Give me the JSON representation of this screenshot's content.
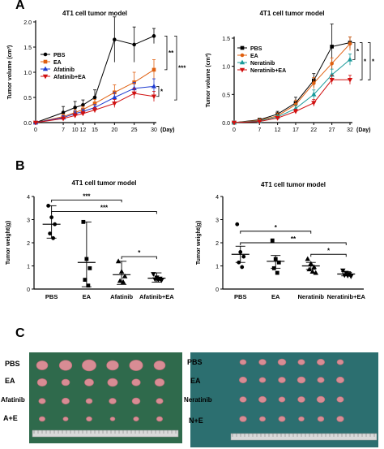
{
  "panels": [
    "A",
    "B",
    "C"
  ],
  "chart_data": [
    {
      "id": "afatinib-volume",
      "type": "line",
      "title": "4T1 cell tumor model",
      "xlabel": "(Day)",
      "ylabel": "Tumor volume (cm³)",
      "x": [
        0,
        7,
        10,
        12,
        15,
        20,
        25,
        30
      ],
      "xlim": [
        0,
        30
      ],
      "ylim": [
        0,
        2.0
      ],
      "yticks": [
        0.0,
        0.5,
        1.0,
        1.5,
        2.0
      ],
      "legend_position": "top-left",
      "series": [
        {
          "name": "PBS",
          "color": "#000000",
          "marker": "circle",
          "values": [
            0,
            0.2,
            0.3,
            0.35,
            0.5,
            1.65,
            1.55,
            1.72
          ],
          "err": [
            0,
            0.12,
            0.12,
            0.1,
            0.15,
            0.45,
            0.35,
            0.15
          ]
        },
        {
          "name": "EA",
          "color": "#e06010",
          "marker": "square",
          "values": [
            0,
            0.12,
            0.2,
            0.26,
            0.38,
            0.6,
            0.8,
            1.05
          ],
          "err": [
            0,
            0.05,
            0.06,
            0.06,
            0.08,
            0.15,
            0.2,
            0.2
          ]
        },
        {
          "name": "Afatinib",
          "color": "#1f3cd0",
          "marker": "triangle",
          "values": [
            0,
            0.1,
            0.18,
            0.22,
            0.3,
            0.5,
            0.68,
            0.72
          ],
          "err": [
            0,
            0.04,
            0.05,
            0.05,
            0.06,
            0.1,
            0.12,
            0.15
          ]
        },
        {
          "name": "Afatinib+EA",
          "color": "#d01010",
          "marker": "triangle-down",
          "values": [
            0,
            0.08,
            0.14,
            0.18,
            0.25,
            0.38,
            0.58,
            0.52
          ],
          "err": [
            0,
            0.03,
            0.04,
            0.04,
            0.05,
            0.08,
            0.1,
            0.1
          ]
        }
      ],
      "significance": [
        "*",
        "**",
        "***"
      ]
    },
    {
      "id": "neratinib-volume",
      "type": "line",
      "title": "4T1 cell tumor model",
      "xlabel": "(Day)",
      "ylabel": "Tumor volume (cm³)",
      "x": [
        0,
        7,
        12,
        17,
        22,
        27,
        32
      ],
      "xlim": [
        0,
        32
      ],
      "ylim": [
        0,
        1.5
      ],
      "yticks": [
        0.0,
        0.5,
        1.0,
        1.5
      ],
      "legend_position": "top-left",
      "series": [
        {
          "name": "PBS",
          "color": "#000000",
          "marker": "square",
          "values": [
            0,
            0.05,
            0.15,
            0.35,
            0.75,
            1.35,
            1.42
          ],
          "err": [
            0,
            0.03,
            0.05,
            0.1,
            0.12,
            0.4,
            0.1
          ]
        },
        {
          "name": "EA",
          "color": "#e06010",
          "marker": "circle",
          "values": [
            0,
            0.04,
            0.12,
            0.32,
            0.7,
            1.05,
            1.4
          ],
          "err": [
            0,
            0.03,
            0.05,
            0.08,
            0.1,
            0.1,
            0.12
          ]
        },
        {
          "name": "Neratinib",
          "color": "#1a9a9a",
          "marker": "triangle",
          "values": [
            0,
            0.03,
            0.1,
            0.25,
            0.5,
            0.85,
            1.12
          ],
          "err": [
            0,
            0.02,
            0.04,
            0.06,
            0.08,
            0.1,
            0.1
          ]
        },
        {
          "name": "Neratinib+EA",
          "color": "#d01010",
          "marker": "triangle-down",
          "values": [
            0,
            0.02,
            0.08,
            0.2,
            0.35,
            0.76,
            0.76
          ],
          "err": [
            0,
            0.02,
            0.03,
            0.04,
            0.06,
            0.08,
            0.08
          ]
        }
      ],
      "significance": [
        "*",
        "*",
        "*"
      ]
    },
    {
      "id": "afatinib-weight",
      "type": "scatter",
      "title": "4T1 cell tumor model",
      "ylabel": "Tumor weight(g)",
      "categories": [
        "PBS",
        "EA",
        "Afatinib",
        "Afatinib+EA"
      ],
      "ylim": [
        0,
        4
      ],
      "yticks": [
        0,
        1,
        2,
        3,
        4
      ],
      "groups": [
        {
          "name": "PBS",
          "marker": "circle",
          "mean": 2.8,
          "sd_low": 2.2,
          "sd_high": 3.6,
          "points": [
            3.6,
            3.1,
            2.8,
            2.4,
            2.2
          ]
        },
        {
          "name": "EA",
          "marker": "square",
          "mean": 1.15,
          "sd_low": 0.1,
          "sd_high": 2.9,
          "points": [
            2.9,
            1.3,
            0.9,
            0.4,
            0.15
          ]
        },
        {
          "name": "Afatinib",
          "marker": "triangle",
          "mean": 0.62,
          "sd_low": 0.2,
          "sd_high": 1.2,
          "points": [
            1.2,
            0.75,
            0.55,
            0.35,
            0.3
          ]
        },
        {
          "name": "Afatinib+EA",
          "marker": "triangle-down",
          "mean": 0.47,
          "sd_low": 0.3,
          "sd_high": 0.7,
          "points": [
            0.65,
            0.5,
            0.45,
            0.42,
            0.4,
            0.38
          ]
        }
      ],
      "brackets": [
        {
          "from": 0,
          "to": 2,
          "y": 3.85,
          "label": "***"
        },
        {
          "from": 0,
          "to": 3,
          "y": 3.35,
          "label": "***"
        },
        {
          "from": 2,
          "to": 3,
          "y": 1.4,
          "label": "*"
        }
      ]
    },
    {
      "id": "neratinib-weight",
      "type": "scatter",
      "title": "4T1 cell tumor model",
      "ylabel": "Tumor weight(g)",
      "categories": [
        "PBS",
        "EA",
        "Neratinib",
        "Neratinib+EA"
      ],
      "ylim": [
        0,
        4
      ],
      "yticks": [
        0,
        1,
        2,
        3,
        4
      ],
      "groups": [
        {
          "name": "PBS",
          "marker": "circle",
          "mean": 1.5,
          "sd_low": 1.15,
          "sd_high": 1.85,
          "points": [
            2.8,
            1.6,
            1.4,
            1.15,
            0.95
          ]
        },
        {
          "name": "EA",
          "marker": "square",
          "mean": 1.2,
          "sd_low": 0.9,
          "sd_high": 1.45,
          "points": [
            2.1,
            1.3,
            1.15,
            0.9,
            0.7
          ]
        },
        {
          "name": "Neratinib",
          "marker": "triangle",
          "mean": 1.0,
          "sd_low": 0.85,
          "sd_high": 1.15,
          "points": [
            1.3,
            1.1,
            0.95,
            0.85,
            0.75,
            0.7
          ]
        },
        {
          "name": "Neratinib+EA",
          "marker": "triangle-down",
          "mean": 0.65,
          "sd_low": 0.57,
          "sd_high": 0.75,
          "points": [
            0.8,
            0.7,
            0.65,
            0.6,
            0.58,
            0.55
          ]
        }
      ],
      "brackets": [
        {
          "from": 0,
          "to": 2,
          "y": 2.5,
          "label": "*"
        },
        {
          "from": 0,
          "to": 3,
          "y": 2.0,
          "label": "**"
        },
        {
          "from": 2,
          "to": 3,
          "y": 1.5,
          "label": "*"
        }
      ]
    }
  ],
  "photos": [
    {
      "id": "afatinib-photo",
      "rows": [
        "PBS",
        "EA",
        "Afatinib",
        "A+E"
      ]
    },
    {
      "id": "neratinib-photo",
      "rows": [
        "PBS",
        "EA",
        "Neratinib",
        "N+E"
      ]
    }
  ],
  "colors": {
    "photo_bg_left": "#2f6a4c",
    "photo_bg_right": "#2c6f70",
    "tumor": "#d88c94"
  }
}
